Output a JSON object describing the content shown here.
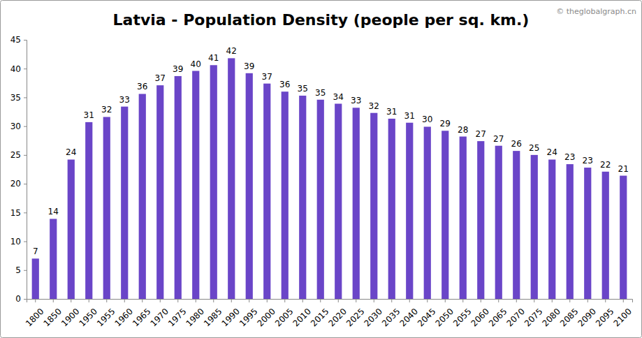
{
  "chart_data": {
    "type": "bar",
    "title": "Latvia - Population Density (people per sq. km.)",
    "annotations": [
      "© theglobalgraph.cn"
    ],
    "categories": [
      "1800",
      "1850",
      "1900",
      "1950",
      "1955",
      "1960",
      "1965",
      "1970",
      "1975",
      "1980",
      "1985",
      "1990",
      "1995",
      "2000",
      "2005",
      "2010",
      "2015",
      "2020",
      "2025",
      "2030",
      "2035",
      "2040",
      "2045",
      "2050",
      "2055",
      "2060",
      "2065",
      "2070",
      "2075",
      "2080",
      "2085",
      "2090",
      "2095",
      "2100"
    ],
    "values": [
      7.0,
      13.9,
      24.2,
      30.7,
      31.6,
      33.4,
      35.6,
      37.1,
      38.7,
      39.6,
      40.6,
      41.8,
      39.2,
      37.4,
      36.0,
      35.3,
      34.6,
      33.9,
      33.2,
      32.3,
      31.3,
      30.6,
      29.9,
      29.2,
      28.2,
      27.4,
      26.6,
      25.7,
      25.0,
      24.2,
      23.4,
      22.8,
      22.1,
      21.4
    ],
    "value_labels": [
      "7",
      "14",
      "24",
      "31",
      "32",
      "33",
      "36",
      "37",
      "39",
      "40",
      "41",
      "42",
      "39",
      "37",
      "36",
      "35",
      "35",
      "34",
      "33",
      "32",
      "31",
      "31",
      "30",
      "29",
      "28",
      "27",
      "27",
      "26",
      "25",
      "24",
      "23",
      "23",
      "22",
      "21"
    ],
    "color": "#6a45c8",
    "data_labels": true,
    "grid": false,
    "ylim": [
      0,
      45
    ],
    "yticks": [
      0,
      5,
      10,
      15,
      20,
      25,
      30,
      35,
      40,
      45
    ]
  }
}
